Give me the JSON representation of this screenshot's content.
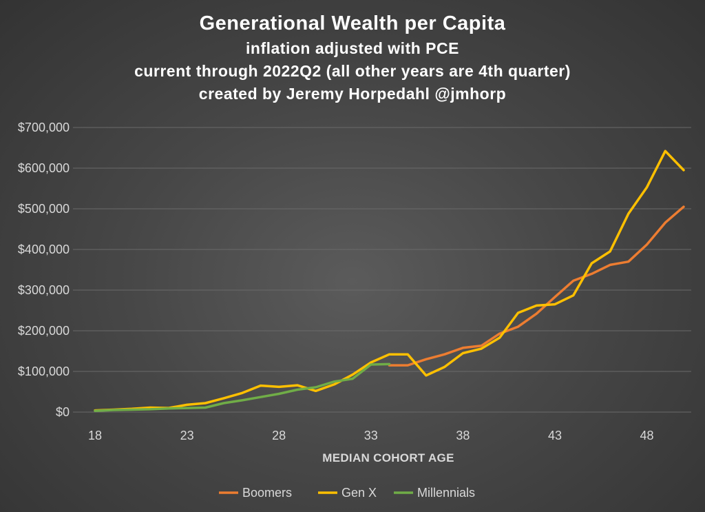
{
  "colors": {
    "Boomers": "#ed7d31",
    "Gen X": "#ffc000",
    "Millennials": "#70ad47",
    "grid": "#6a6a6a",
    "axis_text": "#d9d9d9"
  },
  "chart_data": {
    "type": "line",
    "title": "Generational Wealth per Capita",
    "subtitle_lines": [
      "inflation adjusted with PCE",
      "current through 2022Q2 (all other years are 4th quarter)",
      "created by Jeremy Horpedahl @jmhorp"
    ],
    "xlabel": "MEDIAN COHORT AGE",
    "ylabel": "",
    "xlim": [
      18,
      50
    ],
    "ylim": [
      0,
      700000
    ],
    "xticks": [
      18,
      23,
      28,
      33,
      38,
      43,
      48
    ],
    "yticks": [
      0,
      100000,
      200000,
      300000,
      400000,
      500000,
      600000,
      700000
    ],
    "ytick_labels": [
      "$0",
      "$100,000",
      "$200,000",
      "$300,000",
      "$400,000",
      "$500,000",
      "$600,000",
      "$700,000"
    ],
    "grid": true,
    "legend_position": "bottom",
    "series": [
      {
        "name": "Boomers",
        "x": [
          34,
          35,
          36,
          37,
          38,
          39,
          40,
          41,
          42,
          43,
          44,
          45,
          46,
          47,
          48,
          49,
          50
        ],
        "y": [
          115000,
          115000,
          130000,
          142000,
          158000,
          163000,
          193000,
          210000,
          242000,
          283000,
          323000,
          340000,
          362000,
          370000,
          412000,
          466000,
          505000
        ]
      },
      {
        "name": "Gen X",
        "x": [
          18,
          19,
          20,
          21,
          22,
          23,
          24,
          25,
          26,
          27,
          28,
          29,
          30,
          31,
          32,
          33,
          34,
          35,
          36,
          37,
          38,
          39,
          40,
          41,
          42,
          43,
          44,
          45,
          46,
          47,
          48,
          49,
          50
        ],
        "y": [
          4000,
          6000,
          8000,
          11000,
          10000,
          18000,
          22000,
          34000,
          47000,
          65000,
          62000,
          66000,
          52000,
          68000,
          92000,
          122000,
          142000,
          142000,
          90000,
          111000,
          145000,
          156000,
          183000,
          244000,
          262000,
          265000,
          287000,
          366000,
          395000,
          488000,
          553000,
          642000,
          595000
        ]
      },
      {
        "name": "Millennials",
        "x": [
          18,
          19,
          20,
          21,
          22,
          23,
          24,
          25,
          26,
          27,
          28,
          29,
          30,
          31,
          32,
          33,
          34
        ],
        "y": [
          3000,
          5000,
          6000,
          7000,
          9000,
          10000,
          11000,
          22000,
          29000,
          37000,
          45000,
          55000,
          61000,
          75000,
          82000,
          117000,
          118000
        ]
      }
    ]
  }
}
